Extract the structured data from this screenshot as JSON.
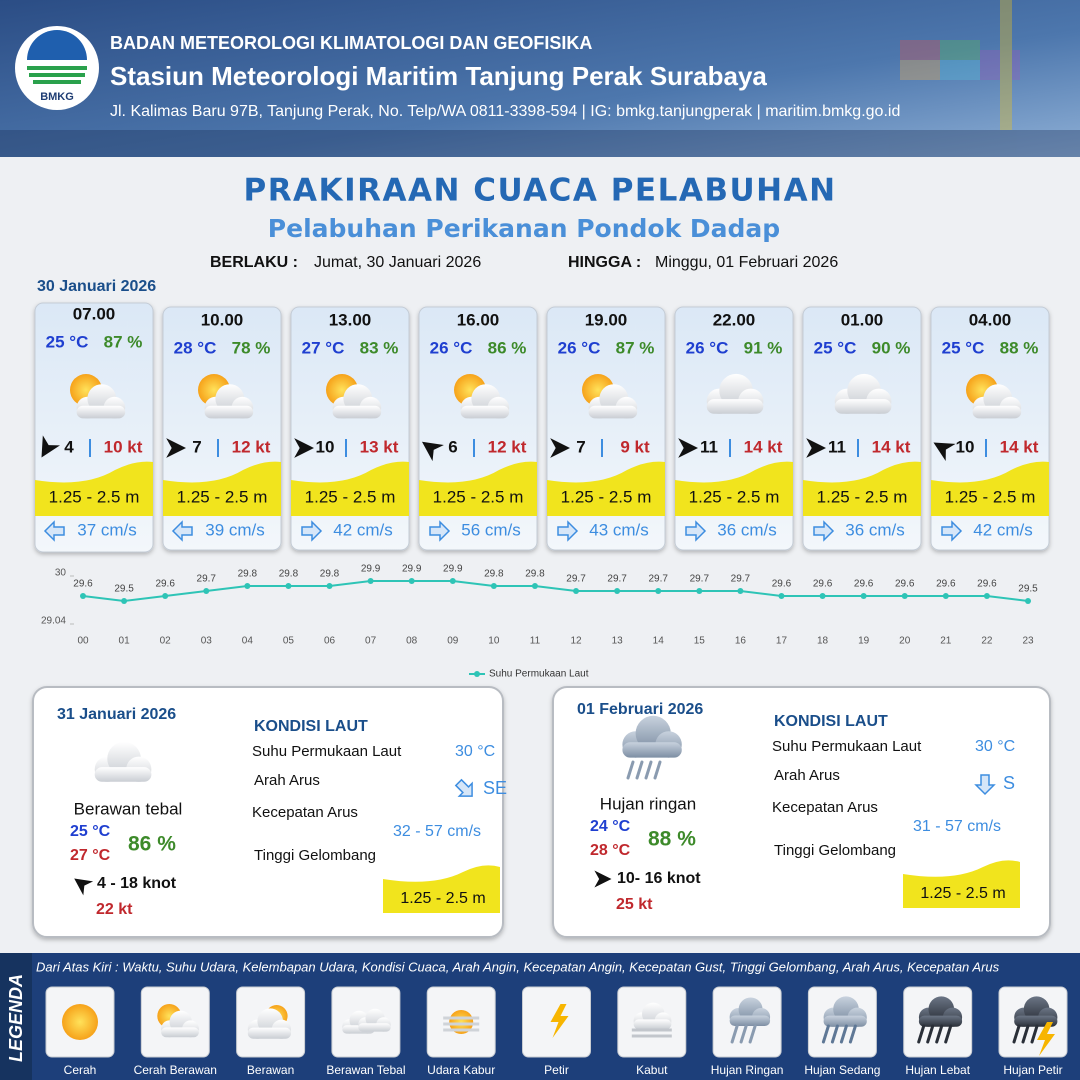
{
  "header": {
    "agency": "BADAN METEOROLOGI KLIMATOLOGI DAN GEOFISIKA",
    "station": "Stasiun Meteorologi Maritim Tanjung Perak Surabaya",
    "address": "Jl. Kalimas Baru 97B, Tanjung Perak, No. Telp/WA 0811-3398-594 | IG: bmkg.tanjungperak | maritim.bmkg.go.id",
    "logo_text": "BMKG"
  },
  "title": "PRAKIRAAN CUACA PELABUHAN",
  "subtitle": "Pelabuhan Perikanan Pondok Dadap",
  "valid_from_label": "BERLAKU :",
  "valid_from": "Jumat, 30 Januari 2026",
  "valid_to_label": "HINGGA :",
  "valid_to": "Minggu, 01 Februari 2026",
  "day1_label": "30 Januari 2026",
  "cards": [
    {
      "time": "07.00",
      "temp": "25 °C",
      "humidity": "87 %",
      "wind": "4",
      "gust": "10 kt",
      "wave": "1.25 - 2.5 m",
      "current": "37 cm/s"
    },
    {
      "time": "10.00",
      "temp": "28 °C",
      "humidity": "78 %",
      "wind": "7",
      "gust": "12 kt",
      "wave": "1.25 - 2.5 m",
      "current": "39 cm/s"
    },
    {
      "time": "13.00",
      "temp": "27 °C",
      "humidity": "83 %",
      "wind": "10",
      "gust": "13 kt",
      "wave": "1.25 - 2.5 m",
      "current": "42 cm/s"
    },
    {
      "time": "16.00",
      "temp": "26 °C",
      "humidity": "86 %",
      "wind": "6",
      "gust": "12 kt",
      "wave": "1.25 - 2.5 m",
      "current": "56 cm/s"
    },
    {
      "time": "19.00",
      "temp": "26 °C",
      "humidity": "87 %",
      "wind": "7",
      "gust": "9 kt",
      "wave": "1.25 - 2.5 m",
      "current": "43 cm/s"
    },
    {
      "time": "22.00",
      "temp": "26 °C",
      "humidity": "91 %",
      "wind": "11",
      "gust": "14 kt",
      "wave": "1.25 - 2.5 m",
      "current": "36 cm/s"
    },
    {
      "time": "01.00",
      "temp": "25 °C",
      "humidity": "90 %",
      "wind": "11",
      "gust": "14 kt",
      "wave": "1.25 - 2.5 m",
      "current": "36 cm/s"
    },
    {
      "time": "04.00",
      "temp": "25 °C",
      "humidity": "88 %",
      "wind": "10",
      "gust": "14 kt",
      "wave": "1.25 - 2.5 m",
      "current": "42 cm/s"
    }
  ],
  "chart_data": {
    "type": "line",
    "categories": [
      "00",
      "01",
      "02",
      "03",
      "04",
      "05",
      "06",
      "07",
      "08",
      "09",
      "10",
      "11",
      "12",
      "13",
      "14",
      "15",
      "16",
      "17",
      "18",
      "19",
      "20",
      "21",
      "22",
      "23"
    ],
    "series": [
      {
        "name": "Suhu Permukaan Laut",
        "color": "#2ec4b6",
        "values": [
          29.6,
          29.5,
          29.6,
          29.7,
          29.8,
          29.8,
          29.8,
          29.9,
          29.9,
          29.9,
          29.8,
          29.8,
          29.7,
          29.7,
          29.7,
          29.7,
          29.7,
          29.6,
          29.6,
          29.6,
          29.6,
          29.6,
          29.6,
          29.5
        ]
      }
    ],
    "ylim": [
      29.04,
      30
    ],
    "yticks": [
      29.04,
      30
    ]
  },
  "daily": [
    {
      "date": "31 Januari 2026",
      "condition": "Berawan tebal",
      "temp_min": "25 °C",
      "temp_max": "27 °C",
      "humidity": "86 %",
      "wind": "4  - 18 knot",
      "gust": "22 kt",
      "sea_title": "KONDISI LAUT",
      "sst_label": "Suhu Permukaan Laut",
      "sst": "30 °C",
      "dir_label": "Arah Arus",
      "dir": "SE",
      "speed_label": "Kecepatan Arus",
      "speed": "32  - 57 cm/s",
      "wave_label": "Tinggi Gelombang",
      "wave": "1.25 - 2.5 m"
    },
    {
      "date": "01 Februari 2026",
      "condition": "Hujan ringan",
      "temp_min": "24 °C",
      "temp_max": "28 °C",
      "humidity": "88 %",
      "wind": "10- 16 knot",
      "gust": "25 kt",
      "sea_title": "KONDISI LAUT",
      "sst_label": "Suhu Permukaan Laut",
      "sst": "30 °C",
      "dir_label": "Arah Arus",
      "dir": "S",
      "speed_label": "Kecepatan Arus",
      "speed": "31  - 57 cm/s",
      "wave_label": "Tinggi Gelombang",
      "wave": "1.25 - 2.5 m"
    }
  ],
  "legend": {
    "title": "LEGENDA",
    "caption": "Dari Atas Kiri : Waktu, Suhu Udara, Kelembapan Udara, Kondisi Cuaca, Arah Angin, Kecepatan Angin, Kecepatan Gust, Tinggi Gelombang, Arah Arus, Kecepatan Arus",
    "items": [
      "Cerah",
      "Cerah Berawan",
      "Berawan",
      "Berawan Tebal",
      "Udara Kabur",
      "Petir",
      "Kabut",
      "Hujan Ringan",
      "Hujan Sedang",
      "Hujan Lebat",
      "Hujan Petir"
    ]
  }
}
